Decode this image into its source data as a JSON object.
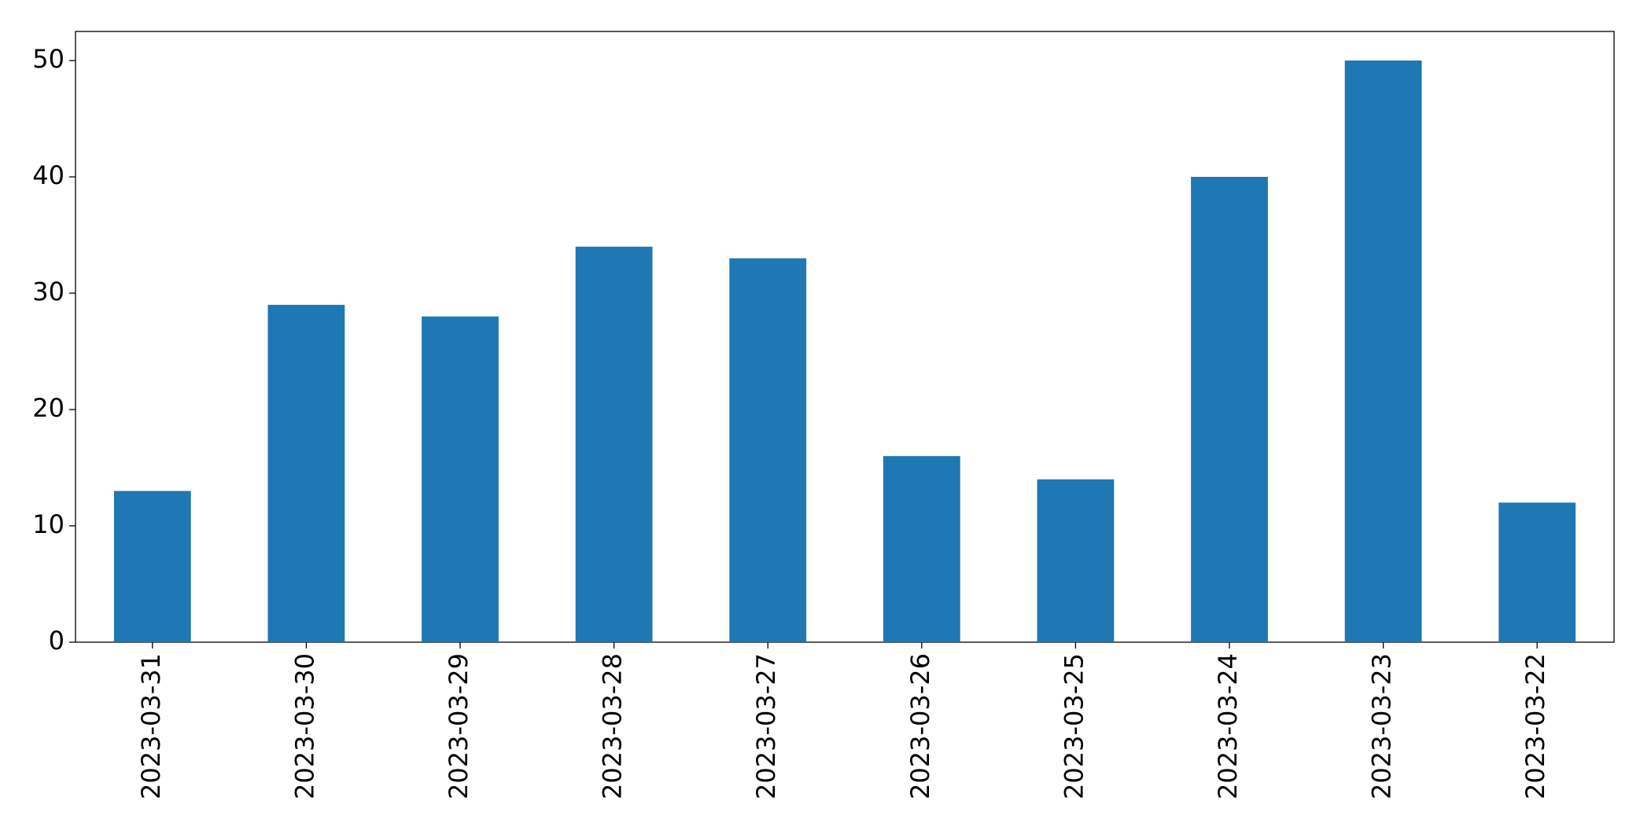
{
  "chart_data": {
    "type": "bar",
    "categories": [
      "2023-03-31",
      "2023-03-30",
      "2023-03-29",
      "2023-03-28",
      "2023-03-27",
      "2023-03-26",
      "2023-03-25",
      "2023-03-24",
      "2023-03-23",
      "2023-03-22"
    ],
    "values": [
      13,
      29,
      28,
      34,
      33,
      16,
      14,
      40,
      50,
      12
    ],
    "color": "#1f77b4",
    "ylim": [
      0,
      52.5
    ],
    "yticks": [
      0,
      10,
      20,
      30,
      40,
      50
    ],
    "grid": false
  }
}
